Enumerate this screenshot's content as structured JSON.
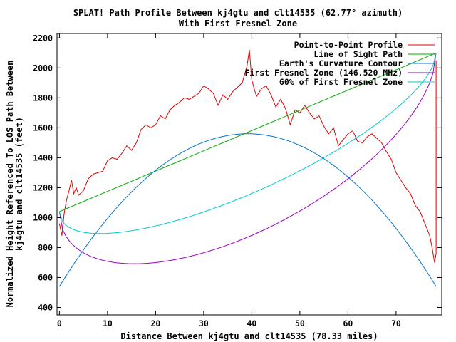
{
  "chart_data": {
    "type": "line",
    "title": "SPLAT! Path Profile Between kj4gtu and clt14535 (62.77° azimuth)",
    "subtitle": "With First Fresnel Zone",
    "xlabel": "Distance Between kj4gtu and clt14535 (78.33 miles)",
    "ylabel_line1": "Normalized Height Referenced To LOS Path Between",
    "ylabel_line2": "kj4gtu and clt14535 (feet)",
    "xlim": [
      -0.5,
      79.5
    ],
    "ylim": [
      350,
      2230
    ],
    "xticks": [
      0,
      10,
      20,
      30,
      40,
      50,
      60,
      70
    ],
    "yticks": [
      400,
      600,
      800,
      1000,
      1200,
      1400,
      1600,
      1800,
      2000,
      2200
    ],
    "grid": false,
    "legend_position": "top-right",
    "series": [
      {
        "name": "Point-to-Point Profile",
        "color": "#dd0000",
        "x": [
          0,
          0.5,
          1,
          1.5,
          2,
          2.5,
          3,
          3.5,
          4,
          5,
          6,
          7,
          8,
          9,
          10,
          11,
          12,
          13,
          14,
          15,
          16,
          17,
          18,
          19,
          20,
          21,
          22,
          23,
          24,
          25,
          26,
          27,
          28,
          29,
          30,
          31,
          32,
          33,
          34,
          35,
          36,
          37,
          38,
          39,
          39.5,
          40,
          40.5,
          41,
          42,
          43,
          44,
          45,
          46,
          47,
          48,
          49,
          50,
          51,
          52,
          53,
          54,
          55,
          56,
          57,
          58,
          59,
          60,
          61,
          62,
          63,
          64,
          65,
          66,
          67,
          68,
          69,
          70,
          71,
          72,
          73,
          74,
          75,
          76,
          77,
          77.5,
          78,
          78.33,
          78.33
        ],
        "values": [
          960,
          880,
          1030,
          1120,
          1180,
          1250,
          1160,
          1200,
          1150,
          1180,
          1260,
          1290,
          1300,
          1310,
          1380,
          1400,
          1390,
          1430,
          1480,
          1450,
          1500,
          1590,
          1620,
          1600,
          1620,
          1680,
          1660,
          1720,
          1750,
          1770,
          1800,
          1790,
          1810,
          1830,
          1880,
          1860,
          1830,
          1750,
          1820,
          1790,
          1840,
          1870,
          1900,
          2010,
          2120,
          1920,
          1860,
          1810,
          1860,
          1880,
          1820,
          1740,
          1790,
          1730,
          1620,
          1720,
          1700,
          1750,
          1700,
          1660,
          1680,
          1610,
          1560,
          1600,
          1480,
          1520,
          1560,
          1580,
          1510,
          1500,
          1540,
          1560,
          1530,
          1500,
          1440,
          1390,
          1300,
          1250,
          1200,
          1160,
          1080,
          1040,
          960,
          880,
          800,
          700,
          760,
          2050
        ]
      },
      {
        "name": "Line of Sight Path",
        "color": "#00aa00",
        "x": [
          0,
          78.33
        ],
        "values": [
          1040,
          2100
        ]
      },
      {
        "name": "Earth's Curvature Contour",
        "color": "#0077cc",
        "curve": {
          "kind": "parabola",
          "start": 540,
          "end": 540,
          "peak": 1560
        }
      },
      {
        "name": "First Fresnel Zone (146.520 MHz)",
        "color": "#9900cc",
        "curve": {
          "kind": "fresnel",
          "start": 1040,
          "end": 2100,
          "radius_mid": 700
        }
      },
      {
        "name": "60% of First Fresnel Zone",
        "color": "#00cccc",
        "curve": {
          "kind": "fresnel",
          "start": 1040,
          "end": 2100,
          "radius_mid": 420
        }
      }
    ]
  }
}
